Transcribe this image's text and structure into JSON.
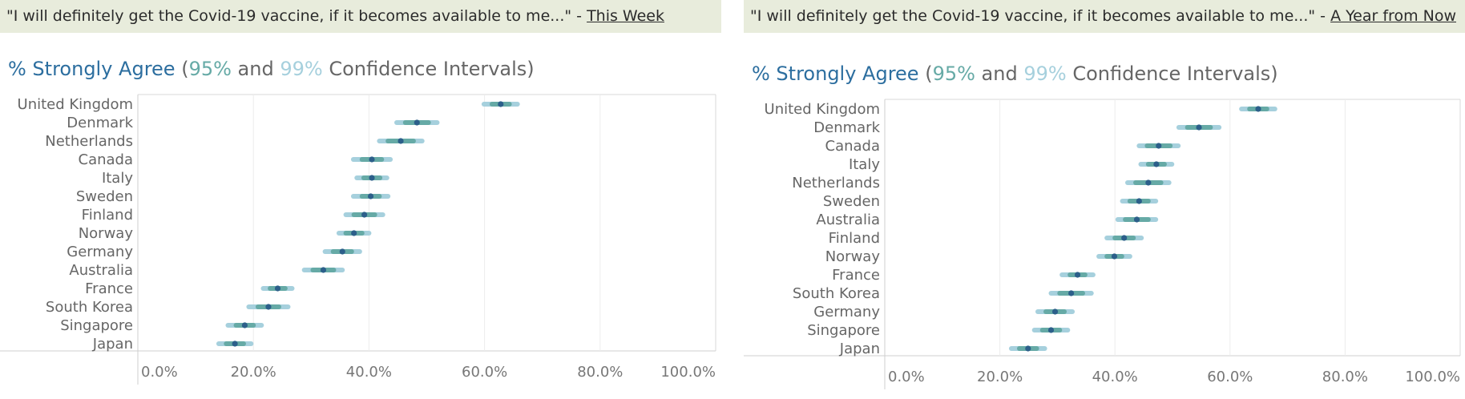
{
  "colors": {
    "ci99": "#a6d0dd",
    "ci95": "#66aaa6",
    "point": "#2c5f8a",
    "title_bg": "#e8ecdc",
    "strongly_agree": "#2c6e9f"
  },
  "panels": [
    {
      "title_prefix": "\"I will definitely get the Covid-19 vaccine, if it becomes available to me...\" - ",
      "title_period": "This Week",
      "subtitle": {
        "part1": "% Strongly Agree",
        "part2": " (",
        "part3": "95%",
        "part4": " and ",
        "part5": "99%",
        "part6": " Confidence Intervals)"
      }
    },
    {
      "title_prefix": "\"I will definitely get the Covid-19 vaccine, if it becomes available to me...\" - ",
      "title_period": "A Year from Now",
      "subtitle": {
        "part1": "% Strongly Agree",
        "part2": " (",
        "part3": "95%",
        "part4": " and ",
        "part5": "99%",
        "part6": " Confidence Intervals)"
      }
    }
  ],
  "chart_data": [
    {
      "type": "scatter",
      "title": "% Strongly Agree (95% and 99% Confidence Intervals)",
      "xlim": [
        0,
        100
      ],
      "x_ticks": [
        "0.0%",
        "20.0%",
        "40.0%",
        "60.0%",
        "80.0%",
        "100.0%"
      ],
      "grid": "vertical",
      "categories": [
        "United Kingdom",
        "Denmark",
        "Netherlands",
        "Canada",
        "Italy",
        "Sweden",
        "Finland",
        "Norway",
        "Germany",
        "Australia",
        "France",
        "South Korea",
        "Singapore",
        "Japan"
      ],
      "values": [
        62.8,
        48.3,
        45.5,
        40.5,
        40.5,
        40.3,
        39.2,
        37.4,
        35.4,
        32.1,
        24.2,
        22.6,
        18.5,
        16.8
      ],
      "ci95": [
        [
          61.3,
          64.3
        ],
        [
          46.3,
          50.3
        ],
        [
          43.3,
          47.7
        ],
        [
          38.8,
          42.2
        ],
        [
          39.1,
          41.9
        ],
        [
          38.8,
          41.8
        ],
        [
          37.4,
          41.0
        ],
        [
          36.0,
          38.8
        ],
        [
          33.8,
          37.0
        ],
        [
          30.3,
          33.9
        ],
        [
          22.9,
          25.5
        ],
        [
          20.8,
          24.4
        ],
        [
          17.0,
          20.0
        ],
        [
          15.3,
          18.3
        ]
      ],
      "ci99": [
        [
          59.9,
          65.7
        ],
        [
          44.8,
          51.8
        ],
        [
          41.8,
          49.2
        ],
        [
          37.3,
          43.7
        ],
        [
          37.9,
          43.1
        ],
        [
          37.3,
          43.3
        ],
        [
          36.0,
          42.4
        ],
        [
          34.8,
          40.0
        ],
        [
          32.4,
          38.4
        ],
        [
          28.8,
          35.4
        ],
        [
          21.7,
          26.7
        ],
        [
          19.2,
          26.0
        ],
        [
          15.6,
          21.4
        ],
        [
          14.0,
          19.6
        ]
      ]
    },
    {
      "type": "scatter",
      "title": "% Strongly Agree (95% and 99% Confidence Intervals)",
      "xlim": [
        0,
        100
      ],
      "x_ticks": [
        "0.0%",
        "20.0%",
        "40.0%",
        "60.0%",
        "80.0%",
        "100.0%"
      ],
      "grid": "vertical",
      "categories": [
        "United Kingdom",
        "Denmark",
        "Canada",
        "Italy",
        "Netherlands",
        "Sweden",
        "Australia",
        "Finland",
        "Norway",
        "France",
        "South Korea",
        "Germany",
        "Singapore",
        "Japan"
      ],
      "values": [
        64.9,
        54.6,
        47.6,
        47.2,
        45.8,
        44.2,
        43.8,
        41.6,
        39.9,
        33.5,
        32.4,
        29.6,
        28.9,
        24.9
      ],
      "ci95": [
        [
          63.4,
          66.4
        ],
        [
          52.6,
          56.6
        ],
        [
          45.6,
          49.6
        ],
        [
          45.8,
          48.6
        ],
        [
          43.6,
          48.0
        ],
        [
          42.6,
          45.8
        ],
        [
          41.8,
          45.8
        ],
        [
          40.0,
          43.2
        ],
        [
          38.6,
          41.2
        ],
        [
          32.2,
          34.8
        ],
        [
          30.4,
          34.4
        ],
        [
          28.0,
          31.2
        ],
        [
          27.4,
          30.4
        ],
        [
          23.4,
          26.4
        ]
      ],
      "ci99": [
        [
          62.0,
          67.8
        ],
        [
          51.1,
          58.1
        ],
        [
          44.2,
          51.0
        ],
        [
          44.5,
          49.9
        ],
        [
          42.2,
          49.4
        ],
        [
          41.3,
          47.1
        ],
        [
          40.5,
          47.1
        ],
        [
          38.6,
          44.6
        ],
        [
          37.2,
          42.6
        ],
        [
          30.8,
          36.2
        ],
        [
          28.9,
          35.9
        ],
        [
          26.6,
          32.6
        ],
        [
          26.0,
          31.8
        ],
        [
          22.0,
          27.8
        ]
      ]
    }
  ]
}
